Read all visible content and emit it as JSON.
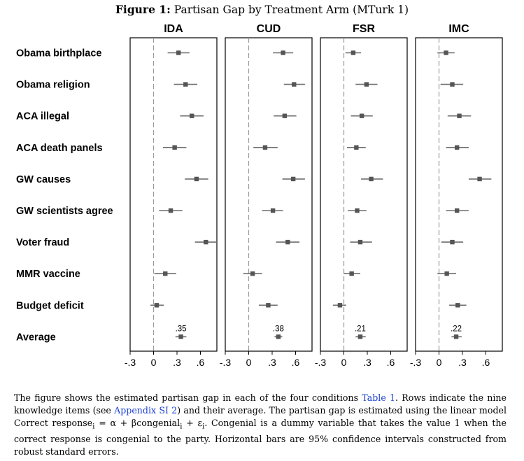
{
  "figure": {
    "label": "Figure 1:",
    "title": "Partisan Gap by Treatment Arm (MTurk 1)"
  },
  "chart_data": {
    "type": "dot-whisker",
    "xlim": [
      -0.3,
      0.8
    ],
    "x_ticks": [
      "-.3",
      "0",
      ".3",
      ".6"
    ],
    "x_tick_values": [
      -0.3,
      0,
      0.3,
      0.6
    ],
    "reference_line": 0,
    "rows": [
      "Obama birthplace",
      "Obama religion",
      "ACA illegal",
      "ACA death panels",
      "GW causes",
      "GW scientists agree",
      "Voter fraud",
      "MMR vaccine",
      "Budget deficit",
      "Average"
    ],
    "panels": [
      {
        "name": "IDA",
        "estimates": [
          0.32,
          0.41,
          0.49,
          0.27,
          0.55,
          0.22,
          0.67,
          0.15,
          0.04,
          0.35
        ],
        "ci_low": [
          0.18,
          0.26,
          0.34,
          0.12,
          0.4,
          0.07,
          0.53,
          0.01,
          -0.04,
          0.28
        ],
        "ci_high": [
          0.46,
          0.56,
          0.64,
          0.42,
          0.7,
          0.37,
          0.81,
          0.29,
          0.13,
          0.42
        ],
        "average_label": ".35"
      },
      {
        "name": "CUD",
        "estimates": [
          0.44,
          0.58,
          0.46,
          0.21,
          0.57,
          0.31,
          0.5,
          0.05,
          0.25,
          0.38
        ],
        "ci_low": [
          0.31,
          0.45,
          0.32,
          0.06,
          0.43,
          0.17,
          0.35,
          -0.07,
          0.13,
          0.33
        ],
        "ci_high": [
          0.57,
          0.72,
          0.61,
          0.37,
          0.72,
          0.44,
          0.65,
          0.17,
          0.37,
          0.43
        ],
        "average_label": ".38"
      },
      {
        "name": "FSR",
        "estimates": [
          0.12,
          0.29,
          0.23,
          0.16,
          0.35,
          0.17,
          0.21,
          0.1,
          -0.05,
          0.21
        ],
        "ci_low": [
          0.02,
          0.15,
          0.09,
          0.04,
          0.22,
          0.05,
          0.08,
          0.0,
          -0.14,
          0.15
        ],
        "ci_high": [
          0.22,
          0.43,
          0.37,
          0.28,
          0.5,
          0.29,
          0.36,
          0.21,
          0.03,
          0.28
        ],
        "average_label": ".21"
      },
      {
        "name": "IMC",
        "estimates": [
          0.09,
          0.17,
          0.26,
          0.23,
          0.52,
          0.23,
          0.17,
          0.1,
          0.24,
          0.22
        ],
        "ci_low": [
          -0.02,
          0.02,
          0.11,
          0.09,
          0.38,
          0.09,
          0.03,
          -0.02,
          0.13,
          0.16
        ],
        "ci_high": [
          0.2,
          0.31,
          0.41,
          0.38,
          0.67,
          0.38,
          0.31,
          0.22,
          0.35,
          0.29
        ],
        "average_label": ".22"
      }
    ]
  },
  "caption": {
    "p1": "The figure shows the estimated partisan gap in each of the four conditions ",
    "link1": "Table 1",
    "p2": ". Rows indicate the nine knowledge items (see ",
    "link2": "Appendix SI 2",
    "p3": ") and their average. The partisan gap is estimated using the linear model Correct response",
    "sub1": "i",
    "p4": " = α + βcongenial",
    "sub2": "i",
    "p5": " + ε",
    "sub3": "i",
    "p6": ". Congenial is a dummy variable that takes the value 1 when the correct response is congenial to the party. Horizontal bars are 95% confidence intervals constructed from robust standard errors."
  }
}
